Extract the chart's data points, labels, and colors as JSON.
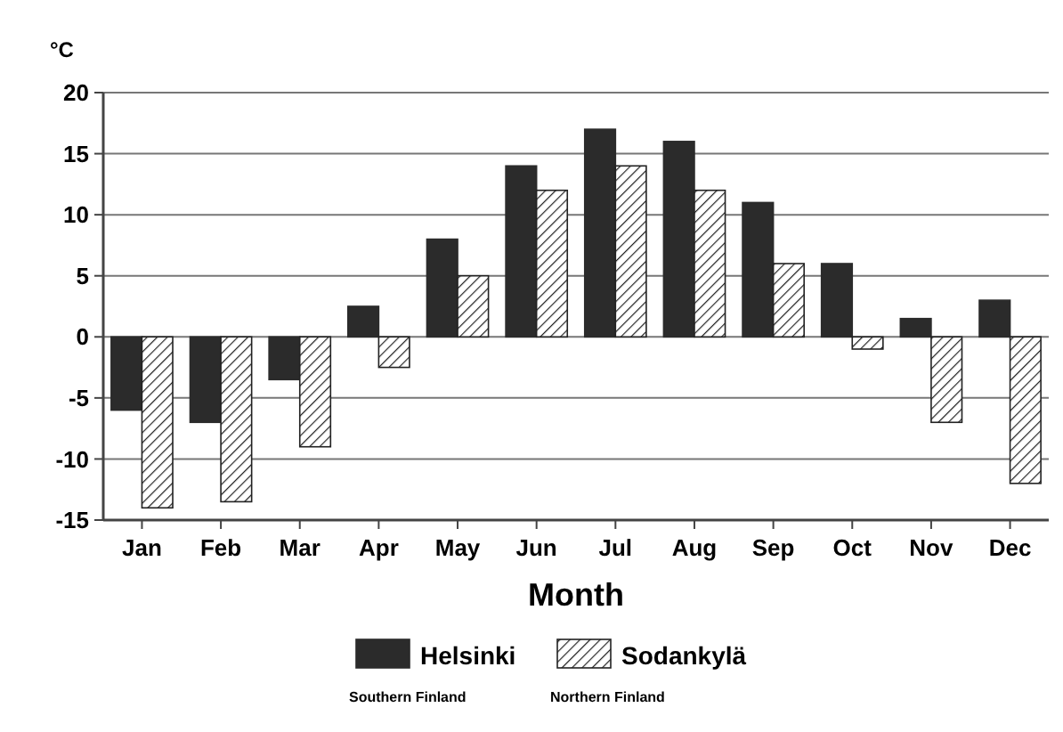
{
  "chart_data": {
    "type": "bar",
    "ylabel": "°C",
    "xlabel": "Month",
    "categories": [
      "Jan",
      "Feb",
      "Mar",
      "Apr",
      "May",
      "Jun",
      "Jul",
      "Aug",
      "Sep",
      "Oct",
      "Nov",
      "Dec"
    ],
    "series": [
      {
        "name": "Helsinki",
        "color": "#2b2b2b",
        "values": [
          -6,
          -7,
          -3.5,
          2.5,
          8,
          14,
          17,
          16,
          11,
          6,
          1.5,
          3
        ]
      },
      {
        "name": "Sodankylä",
        "color": "#222222",
        "values": [
          -14,
          -13.5,
          -9,
          -2.5,
          5,
          12,
          14,
          12,
          6,
          -1,
          -7,
          -12
        ]
      }
    ],
    "ylim": [
      -15,
      20
    ],
    "yticks": [
      -15,
      -10,
      -5,
      0,
      5,
      10,
      15,
      20
    ],
    "grid": "y",
    "legend": "bottom",
    "annotations": [
      "Southern Finland",
      "Northern Finland"
    ]
  }
}
